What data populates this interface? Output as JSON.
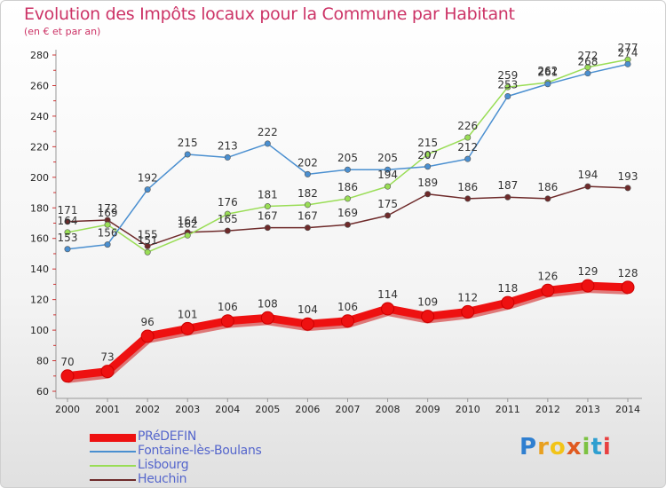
{
  "title": "Evolution des Impôts locaux pour la Commune par Habitant",
  "subtitle": "(en € et par an)",
  "logo": {
    "letters": [
      "P",
      "r",
      "o",
      "x",
      "i",
      "t",
      "i"
    ],
    "colors": [
      "#2f7fd0",
      "#e8a020",
      "#f2c418",
      "#e05a20",
      "#7cc242",
      "#2f9fd0",
      "#e84040"
    ]
  },
  "chart_data": {
    "type": "line",
    "title": "Evolution des Impôts locaux pour la Commune par Habitant",
    "subtitle": "(en € et par an)",
    "x": [
      2000,
      2001,
      2002,
      2003,
      2004,
      2005,
      2006,
      2007,
      2008,
      2009,
      2010,
      2011,
      2012,
      2013,
      2014
    ],
    "ylim": [
      60,
      280
    ],
    "yticks": [
      60,
      80,
      100,
      120,
      140,
      160,
      180,
      200,
      220,
      240,
      260,
      280
    ],
    "grid": false,
    "legend": "bottom-left",
    "series": [
      {
        "name": "PRéDEFIN",
        "color": "#ee1111",
        "values": [
          70,
          73,
          96,
          101,
          106,
          108,
          104,
          106,
          114,
          109,
          112,
          118,
          126,
          129,
          128
        ]
      },
      {
        "name": "Fontaine-lès-Boulans",
        "color": "#4a8fd0",
        "values": [
          153,
          156,
          192,
          215,
          213,
          222,
          202,
          205,
          205,
          207,
          212,
          253,
          261,
          268,
          274
        ]
      },
      {
        "name": "Lisbourg",
        "color": "#99dd55",
        "values": [
          164,
          169,
          151,
          162,
          176,
          181,
          182,
          186,
          194,
          215,
          226,
          259,
          262,
          272,
          277
        ]
      },
      {
        "name": "Heuchin",
        "color": "#6e2a2a",
        "values": [
          171,
          172,
          155,
          164,
          165,
          167,
          167,
          169,
          175,
          189,
          186,
          187,
          186,
          194,
          193
        ]
      }
    ]
  }
}
